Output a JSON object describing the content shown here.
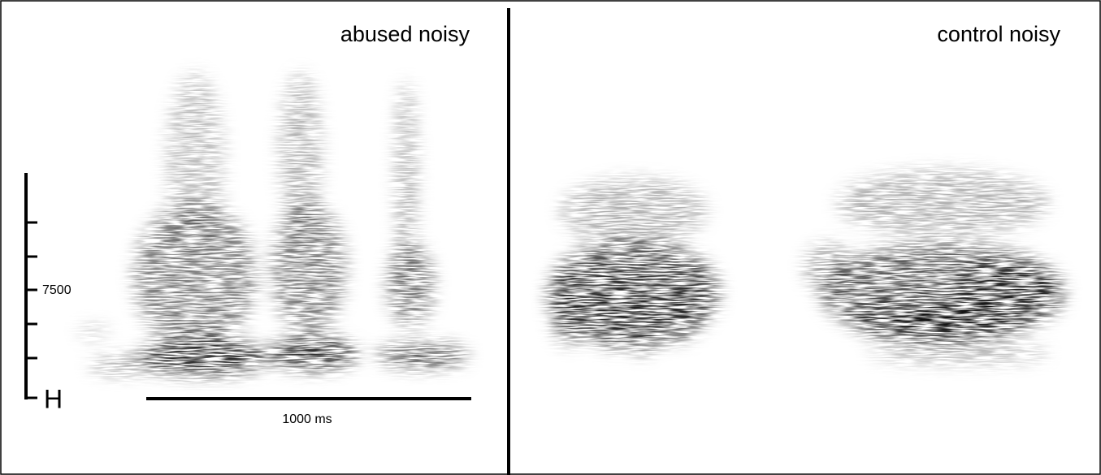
{
  "panels": [
    {
      "title": "abused noisy"
    },
    {
      "title": "control noisy"
    }
  ],
  "scale": {
    "frequency_label": "7500",
    "unit_label": "H",
    "time_label": "1000 ms"
  }
}
